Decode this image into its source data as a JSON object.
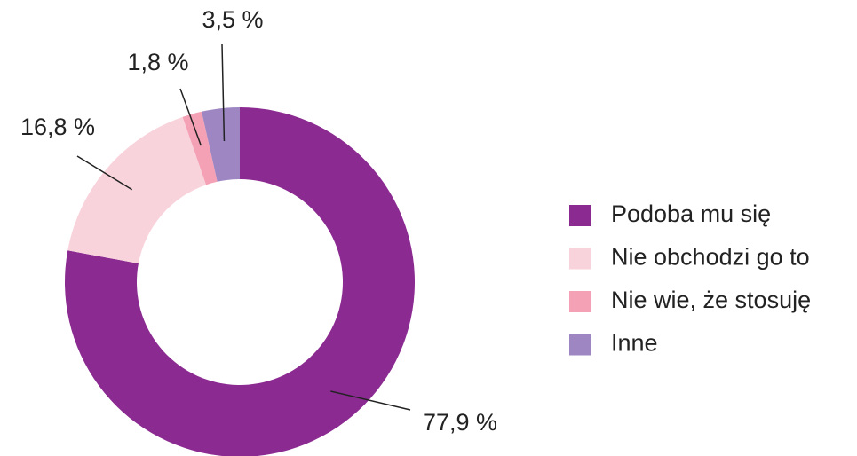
{
  "chart_data": {
    "type": "donut",
    "categories": [
      "Podoba mu się",
      "Nie obchodzi go to",
      "Nie wie, że stosuję",
      "Inne"
    ],
    "values": [
      77.9,
      16.8,
      1.8,
      3.5
    ],
    "value_labels": [
      "77,9 %",
      "16,8 %",
      "1,8 %",
      "3,5 %"
    ],
    "colors": [
      "#8b2a91",
      "#f9d3dc",
      "#f4a1b5",
      "#9d86c2"
    ],
    "legend": "right"
  }
}
